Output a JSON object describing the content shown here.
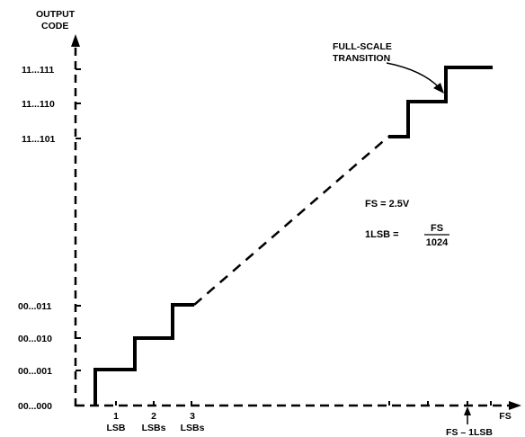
{
  "figure": {
    "axis_title_y": [
      "OUTPUT",
      "CODE"
    ],
    "axis_label_x": "FS",
    "y_codes": [
      "00...000",
      "00...001",
      "00...010",
      "00...011",
      "11...101",
      "11...110",
      "11...111"
    ],
    "x_labels": [
      {
        "top": "1",
        "bottom": "LSB"
      },
      {
        "top": "2",
        "bottom": "LSBs"
      },
      {
        "top": "3",
        "bottom": "LSBs"
      }
    ],
    "fs_minus_label": "FS – 1LSB",
    "annotation": [
      "FULL-SCALE",
      "TRANSITION"
    ],
    "fs_value": "FS = 2.5V",
    "lsb_eq_prefix": "1LSB =",
    "lsb_eq_numerator": "FS",
    "lsb_eq_denominator": "1024"
  },
  "chart_data": {
    "type": "line",
    "title": "",
    "xlabel": "FS",
    "ylabel": "OUTPUT CODE",
    "step_transitions_lsb": [
      1,
      2,
      3
    ],
    "fs_lsb_count": 1024,
    "fs_volts": 2.5,
    "codes_lower": [
      "00...000",
      "00...001",
      "00...010",
      "00...011"
    ],
    "codes_upper": [
      "11...101",
      "11...110",
      "11...111"
    ],
    "full_scale_transition": "FS – 1LSB"
  }
}
